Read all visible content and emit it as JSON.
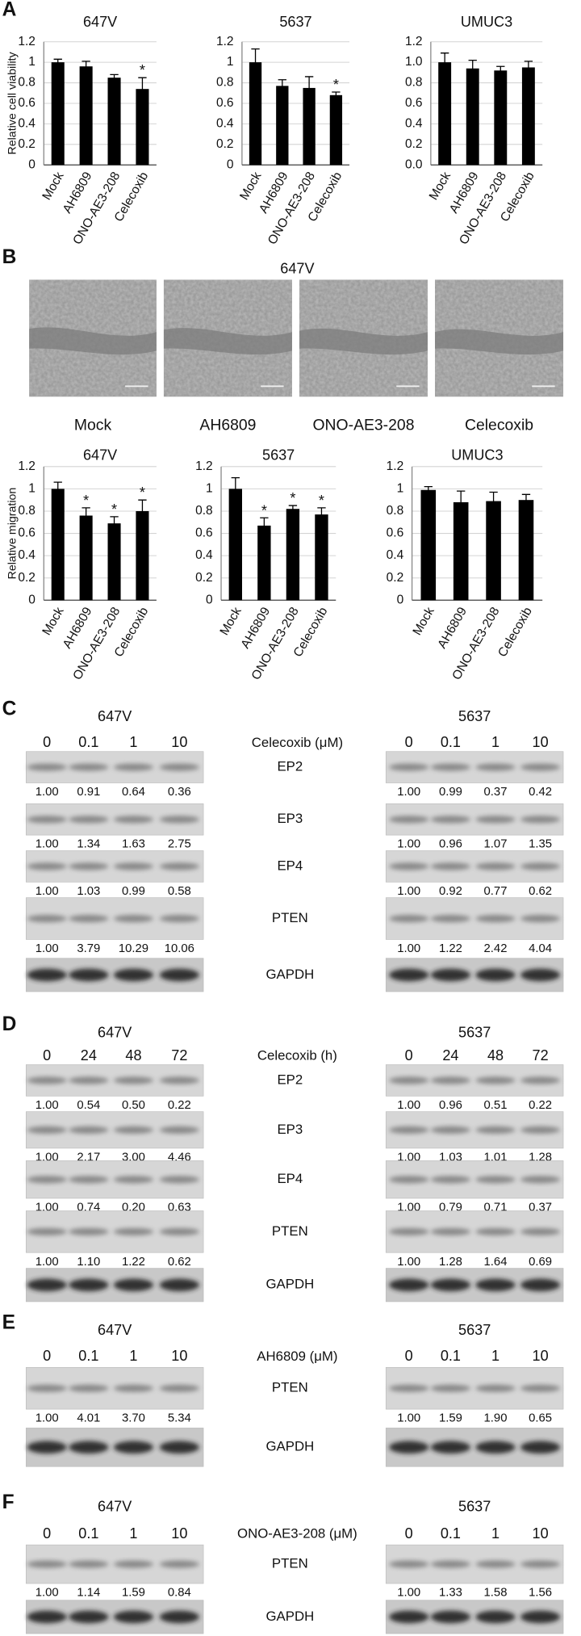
{
  "chart_data": [
    {
      "type": "bar",
      "title": "647V",
      "y_label": "Relative cell viability",
      "categories": [
        "Mock",
        "AH6809",
        "ONO-AE3-208",
        "Celecoxib"
      ],
      "values": [
        1.0,
        0.96,
        0.85,
        0.74
      ],
      "errors": [
        0.03,
        0.05,
        0.03,
        0.11
      ],
      "significance": [
        null,
        null,
        null,
        "*"
      ],
      "color": "#000000",
      "ylim": [
        0,
        1.2
      ],
      "yticks": [
        0,
        0.2,
        0.4,
        0.6,
        0.8,
        1,
        1.2
      ],
      "grid": true
    },
    {
      "type": "bar",
      "title": "5637",
      "categories": [
        "Mock",
        "AH6809",
        "ONO-AE3-208",
        "Celecoxib"
      ],
      "values": [
        1.0,
        0.77,
        0.75,
        0.68
      ],
      "errors": [
        0.13,
        0.06,
        0.11,
        0.03
      ],
      "significance": [
        null,
        null,
        null,
        "*"
      ],
      "color": "#000000",
      "ylim": [
        0,
        1.2
      ],
      "yticks": [
        0,
        0.2,
        0.4,
        0.6,
        0.8,
        1,
        1.2
      ],
      "grid": true
    },
    {
      "type": "bar",
      "title": "UMUC3",
      "categories": [
        "Mock",
        "AH6809",
        "ONO-AE3-208",
        "Celecoxib"
      ],
      "values": [
        1.0,
        0.94,
        0.92,
        0.95
      ],
      "errors": [
        0.09,
        0.08,
        0.04,
        0.06
      ],
      "color": "#000000",
      "ylim": [
        0,
        1.2
      ],
      "yticks": [
        {
          "value": 0,
          "label": "0.0"
        },
        0.2,
        0.4,
        0.6,
        0.8,
        {
          "value": 1,
          "label": "1.0"
        },
        1.2
      ],
      "grid": true
    },
    {
      "type": "bar",
      "title": "647V",
      "y_label": "Relative migration",
      "categories": [
        "Mock",
        "AH6809",
        "ONO-AE3-208",
        "Celecoxib"
      ],
      "values": [
        1.0,
        0.76,
        0.69,
        0.8
      ],
      "errors": [
        0.06,
        0.07,
        0.06,
        0.1
      ],
      "significance": [
        null,
        "*",
        "*",
        "*"
      ],
      "color": "#000000",
      "ylim": [
        0,
        1.2
      ],
      "yticks": [
        0,
        0.2,
        0.4,
        0.6,
        0.8,
        1,
        1.2
      ],
      "grid": true
    },
    {
      "type": "bar",
      "title": "5637",
      "categories": [
        "Mock",
        "AH6809",
        "ONO-AE3-208",
        "Celecoxib"
      ],
      "values": [
        1.0,
        0.67,
        0.82,
        0.77
      ],
      "errors": [
        0.1,
        0.07,
        0.03,
        0.06
      ],
      "significance": [
        null,
        "*",
        "*",
        "*"
      ],
      "color": "#000000",
      "ylim": [
        0,
        1.2
      ],
      "yticks": [
        0,
        0.2,
        0.4,
        0.6,
        0.8,
        1,
        1.2
      ],
      "grid": true
    },
    {
      "type": "bar",
      "title": "UMUC3",
      "categories": [
        "Mock",
        "AH6809",
        "ONO-AE3-208",
        "Celecoxib"
      ],
      "values": [
        0.99,
        0.88,
        0.89,
        0.9
      ],
      "errors": [
        0.03,
        0.1,
        0.08,
        0.05
      ],
      "color": "#000000",
      "ylim": [
        0,
        1.2
      ],
      "yticks": [
        0,
        0.2,
        0.4,
        0.6,
        0.8,
        1,
        1.2
      ],
      "grid": true
    }
  ],
  "panel_labels": [
    "A",
    "B",
    "C",
    "D",
    "E",
    "F"
  ],
  "migration_images": {
    "title": "647V",
    "labels": [
      "Mock",
      "AH6809",
      "ONO-AE3-208",
      "Celecoxib"
    ]
  },
  "blots": [
    {
      "cell_lines": [
        "647V",
        "5637"
      ],
      "treatment": "Celecoxib (μM)",
      "lanes": [
        "0",
        "0.1",
        "1",
        "10"
      ],
      "rows": [
        {
          "protein": "EP2",
          "left": [
            "1.00",
            "0.91",
            "0.64",
            "0.36"
          ],
          "right": [
            "1.00",
            "0.99",
            "0.37",
            "0.42"
          ]
        },
        {
          "protein": "EP3",
          "left": [
            "1.00",
            "1.34",
            "1.63",
            "2.75"
          ],
          "right": [
            "1.00",
            "0.96",
            "1.07",
            "1.35"
          ]
        },
        {
          "protein": "EP4",
          "left": [
            "1.00",
            "1.03",
            "0.99",
            "0.58"
          ],
          "right": [
            "1.00",
            "0.92",
            "0.77",
            "0.62"
          ]
        },
        {
          "protein": "PTEN",
          "left": [
            "1.00",
            "3.79",
            "10.29",
            "10.06"
          ],
          "right": [
            "1.00",
            "1.22",
            "2.42",
            "4.04"
          ]
        },
        {
          "protein": "GAPDH"
        }
      ]
    },
    {
      "cell_lines": [
        "647V",
        "5637"
      ],
      "treatment": "Celecoxib (h)",
      "lanes": [
        "0",
        "24",
        "48",
        "72"
      ],
      "rows": [
        {
          "protein": "EP2",
          "left": [
            "1.00",
            "0.54",
            "0.50",
            "0.22"
          ],
          "right": [
            "1.00",
            "0.96",
            "0.51",
            "0.22"
          ]
        },
        {
          "protein": "EP3",
          "left": [
            "1.00",
            "2.17",
            "3.00",
            "4.46"
          ],
          "right": [
            "1.00",
            "1.03",
            "1.01",
            "1.28"
          ]
        },
        {
          "protein": "EP4",
          "left": [
            "1.00",
            "0.74",
            "0.20",
            "0.63"
          ],
          "right": [
            "1.00",
            "0.79",
            "0.71",
            "0.37"
          ]
        },
        {
          "protein": "PTEN",
          "left": [
            "1.00",
            "1.10",
            "1.22",
            "0.62"
          ],
          "right": [
            "1.00",
            "1.28",
            "1.64",
            "0.69"
          ]
        },
        {
          "protein": "GAPDH"
        }
      ]
    },
    {
      "cell_lines": [
        "647V",
        "5637"
      ],
      "treatment": "AH6809 (μM)",
      "lanes": [
        "0",
        "0.1",
        "1",
        "10"
      ],
      "rows": [
        {
          "protein": "PTEN",
          "left": [
            "1.00",
            "4.01",
            "3.70",
            "5.34"
          ],
          "right": [
            "1.00",
            "1.59",
            "1.90",
            "0.65"
          ]
        },
        {
          "protein": "GAPDH"
        }
      ]
    },
    {
      "cell_lines": [
        "647V",
        "5637"
      ],
      "treatment": "ONO-AE3-208 (μM)",
      "lanes": [
        "0",
        "0.1",
        "1",
        "10"
      ],
      "rows": [
        {
          "protein": "PTEN",
          "left": [
            "1.00",
            "1.14",
            "1.59",
            "0.84"
          ],
          "right": [
            "1.00",
            "1.33",
            "1.58",
            "1.56"
          ]
        },
        {
          "protein": "GAPDH"
        }
      ]
    }
  ]
}
